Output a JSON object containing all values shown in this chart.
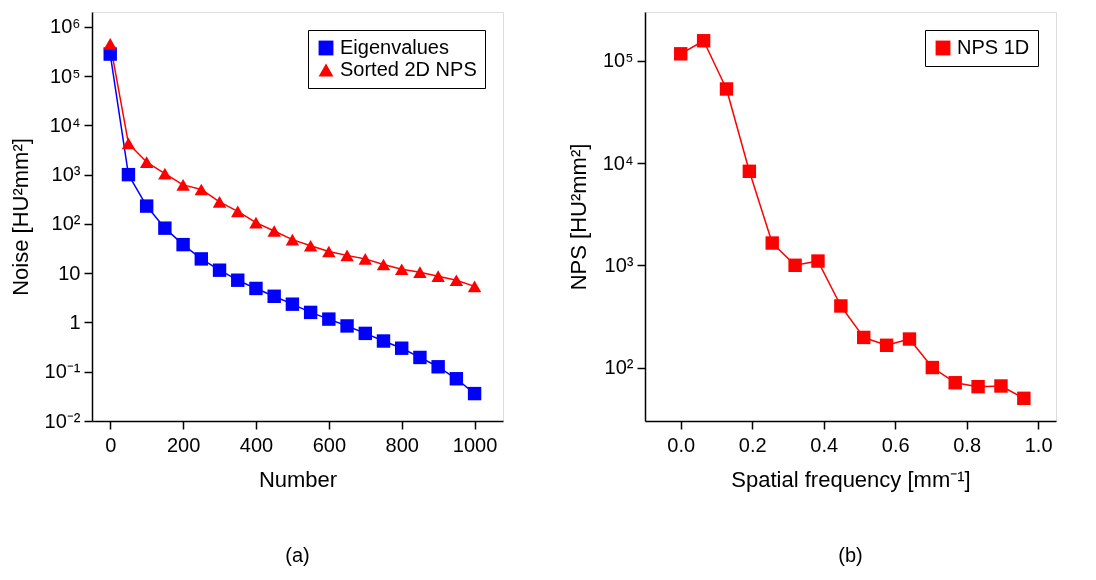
{
  "chart_data": [
    {
      "type": "line",
      "xlabel": "Number",
      "ylabel": "Noise [HU²mm²]",
      "annotations": [
        "(a)"
      ],
      "log": "y",
      "grid": false,
      "legend": "top right",
      "xlim": [
        -50,
        1078
      ],
      "xticks": [
        0,
        200,
        400,
        600,
        800,
        1000
      ],
      "ylim": [
        0.01,
        2000000
      ],
      "yticks": [
        {
          "value": 0.01,
          "label": "10⁻²"
        },
        {
          "value": 0.1,
          "label": "10⁻¹"
        },
        1,
        10,
        {
          "value": 100,
          "label": "10²"
        },
        {
          "value": 1000,
          "label": "10³"
        },
        {
          "value": 10000,
          "label": "10⁴"
        },
        {
          "value": 100000,
          "label": "10⁵"
        },
        {
          "value": 1000000,
          "label": "10⁶"
        }
      ],
      "x": [
        0,
        50,
        100,
        150,
        200,
        250,
        300,
        350,
        400,
        450,
        500,
        550,
        600,
        650,
        700,
        750,
        800,
        850,
        900,
        950,
        1000
      ],
      "series": [
        {
          "name": "Eigenvalues",
          "color": "#0000ff",
          "marker": "square",
          "values": [
            280000,
            1000,
            230,
            82,
            38,
            19.5,
            11.5,
            7.2,
            4.9,
            3.4,
            2.35,
            1.6,
            1.17,
            0.85,
            0.6,
            0.42,
            0.3,
            0.195,
            0.126,
            0.072,
            0.036
          ]
        },
        {
          "name": "Sorted 2D NPS",
          "color": "#ff0000",
          "marker": "triangle",
          "values": [
            450000,
            4300,
            1800,
            1050,
            620,
            500,
            280,
            180,
            106,
            72,
            48,
            36,
            27.5,
            23,
            19.5,
            15,
            12,
            10.5,
            8.7,
            7.2,
            5.4
          ]
        }
      ]
    },
    {
      "type": "line",
      "xlabel": "Spatial frequency [mm⁻¹]",
      "ylabel": "NPS [HU²mm²]",
      "annotations": [
        "(b)"
      ],
      "log": "y",
      "grid": false,
      "legend": "top right",
      "xlim": [
        -0.1,
        1.05
      ],
      "xticks": [
        {
          "value": 0,
          "label": "0.0"
        },
        0.2,
        0.4,
        0.6,
        0.8,
        {
          "value": 1,
          "label": "1.0"
        }
      ],
      "ylim": [
        30,
        300000
      ],
      "yticks": [
        {
          "value": 100,
          "label": "10²"
        },
        {
          "value": 1000,
          "label": "10³"
        },
        {
          "value": 10000,
          "label": "10⁴"
        },
        {
          "value": 100000,
          "label": "10⁵"
        }
      ],
      "x": [
        0,
        0.064,
        0.128,
        0.192,
        0.256,
        0.32,
        0.384,
        0.448,
        0.512,
        0.576,
        0.64,
        0.704,
        0.768,
        0.832,
        0.896,
        0.96
      ],
      "series": [
        {
          "name": "NPS 1D",
          "color": "#ff0000",
          "marker": "square",
          "values": [
            117000,
            157000,
            53000,
            8300,
            1650,
            1000,
            1100,
            400,
            197,
            165,
            190,
            100,
            71,
            65,
            66,
            50
          ]
        }
      ]
    }
  ]
}
